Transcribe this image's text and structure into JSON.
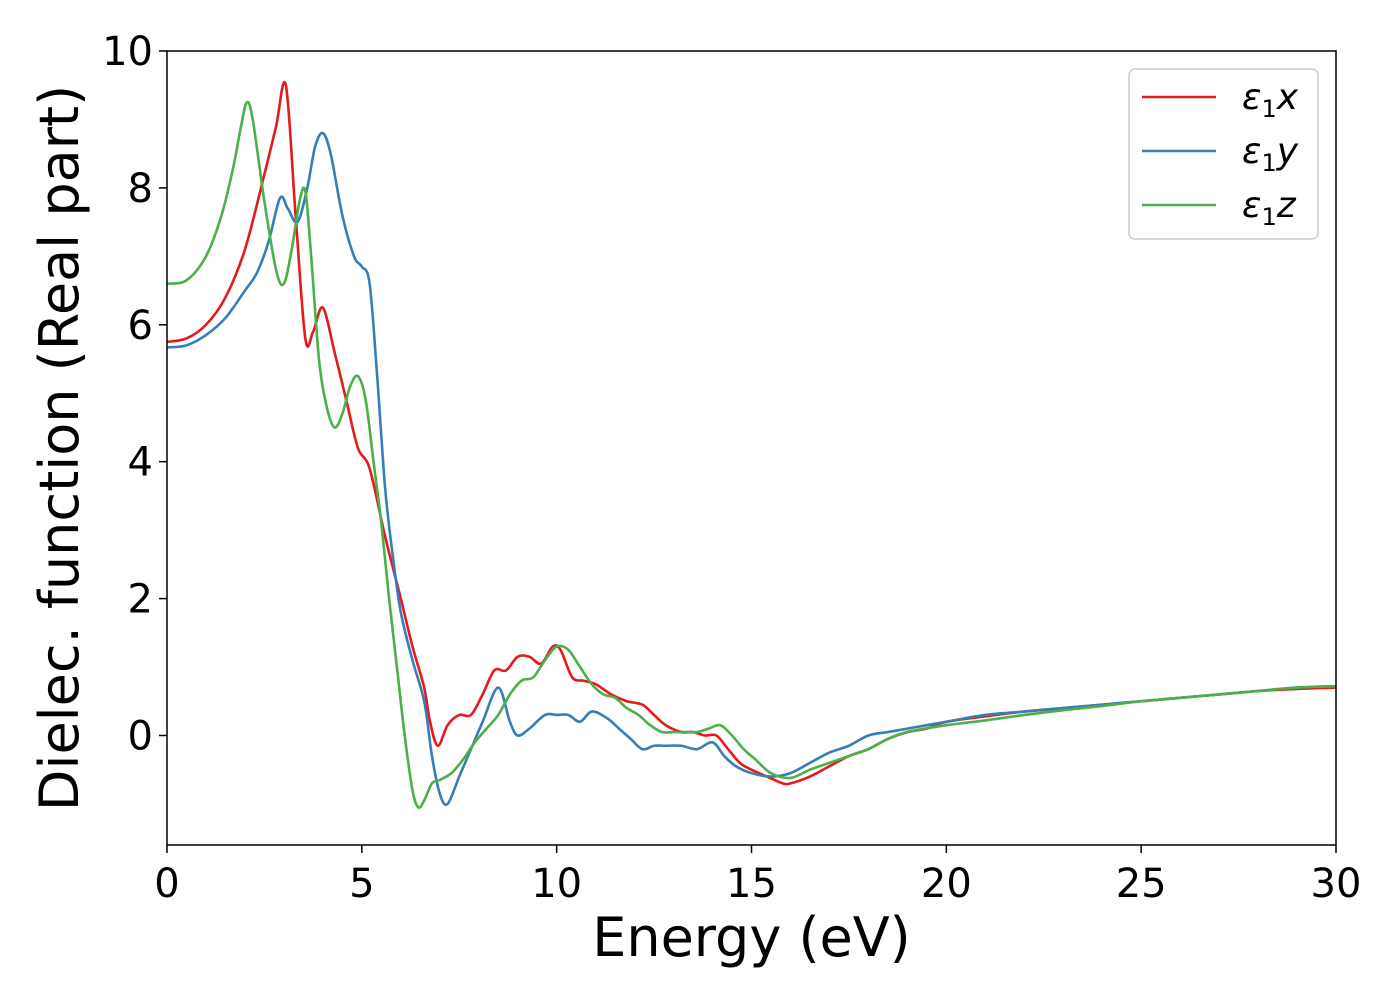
{
  "chart_data": {
    "type": "line",
    "xlabel": "Energy (eV)",
    "ylabel": "Dielec. function (Real part)",
    "xlim": [
      0,
      30
    ],
    "ylim": [
      -1.6,
      10
    ],
    "xticks": [
      0,
      5,
      10,
      15,
      20,
      25,
      30
    ],
    "yticks": [
      0,
      2,
      4,
      6,
      8,
      10
    ],
    "xtick_labels": [
      "0",
      "5",
      "10",
      "15",
      "20",
      "25",
      "30"
    ],
    "ytick_labels": [
      "0",
      "2",
      "4",
      "6",
      "8",
      "10"
    ],
    "grid": false,
    "legend_position": "top-right",
    "series": [
      {
        "name": "ε1x",
        "legend_symbol": "ε",
        "legend_sub": "1",
        "legend_var": "x",
        "color": "#e41a1c",
        "x": [
          0,
          0.5,
          1.0,
          1.5,
          2.0,
          2.5,
          2.8,
          3.05,
          3.3,
          3.55,
          3.75,
          4.0,
          4.3,
          4.6,
          4.9,
          5.2,
          5.6,
          6.0,
          6.3,
          6.6,
          6.75,
          6.95,
          7.2,
          7.5,
          7.8,
          8.1,
          8.4,
          8.7,
          9.0,
          9.3,
          9.6,
          9.9,
          10.1,
          10.4,
          10.7,
          11.0,
          11.4,
          11.8,
          12.2,
          12.5,
          12.8,
          13.2,
          13.5,
          13.8,
          14.1,
          14.4,
          14.7,
          15.0,
          15.4,
          15.8,
          16.0,
          16.5,
          17.0,
          17.5,
          18.0,
          18.5,
          19.0,
          19.5,
          20.0,
          21.0,
          22.0,
          23.0,
          24.0,
          25.0,
          26.0,
          27.0,
          28.0,
          29.0,
          30.0
        ],
        "y": [
          5.75,
          5.8,
          6.0,
          6.4,
          7.1,
          8.2,
          8.9,
          9.5,
          7.6,
          5.8,
          5.9,
          6.25,
          5.6,
          4.9,
          4.2,
          3.9,
          2.9,
          2.0,
          1.3,
          0.7,
          0.2,
          -0.15,
          0.15,
          0.3,
          0.3,
          0.6,
          0.95,
          0.95,
          1.15,
          1.15,
          1.05,
          1.3,
          1.25,
          0.85,
          0.8,
          0.75,
          0.6,
          0.5,
          0.45,
          0.3,
          0.15,
          0.05,
          0.05,
          0.0,
          0.0,
          -0.2,
          -0.4,
          -0.5,
          -0.6,
          -0.7,
          -0.7,
          -0.6,
          -0.45,
          -0.3,
          -0.2,
          -0.05,
          0.05,
          0.1,
          0.2,
          0.28,
          0.35,
          0.4,
          0.45,
          0.5,
          0.55,
          0.6,
          0.65,
          0.68,
          0.7
        ]
      },
      {
        "name": "ε1y",
        "legend_symbol": "ε",
        "legend_sub": "1",
        "legend_var": "y",
        "color": "#377eb8",
        "x": [
          0,
          0.5,
          1.0,
          1.5,
          2.0,
          2.3,
          2.6,
          2.9,
          3.1,
          3.35,
          3.6,
          3.8,
          4.0,
          4.2,
          4.5,
          4.8,
          5.0,
          5.2,
          5.4,
          5.6,
          5.8,
          6.0,
          6.3,
          6.6,
          6.8,
          7.0,
          7.2,
          7.5,
          7.8,
          8.1,
          8.5,
          8.8,
          9.0,
          9.3,
          9.7,
          10.0,
          10.3,
          10.6,
          10.9,
          11.3,
          11.6,
          11.9,
          12.2,
          12.5,
          12.8,
          13.2,
          13.6,
          14.0,
          14.3,
          14.6,
          15.0,
          15.5,
          16.0,
          16.5,
          17.0,
          17.5,
          18.0,
          18.5,
          19.0,
          20.0,
          21.0,
          22.0,
          23.0,
          24.0,
          25.0,
          26.0,
          27.0,
          28.0,
          29.0,
          30.0
        ],
        "y": [
          5.67,
          5.7,
          5.85,
          6.1,
          6.5,
          6.75,
          7.2,
          7.85,
          7.7,
          7.5,
          8.0,
          8.6,
          8.8,
          8.5,
          7.6,
          7.0,
          6.85,
          6.6,
          5.2,
          3.6,
          2.6,
          1.8,
          1.1,
          0.5,
          -0.3,
          -0.85,
          -1.0,
          -0.6,
          -0.2,
          0.2,
          0.7,
          0.2,
          0.0,
          0.1,
          0.3,
          0.3,
          0.3,
          0.2,
          0.35,
          0.25,
          0.1,
          -0.05,
          -0.2,
          -0.15,
          -0.15,
          -0.15,
          -0.2,
          -0.1,
          -0.3,
          -0.45,
          -0.55,
          -0.6,
          -0.55,
          -0.4,
          -0.25,
          -0.15,
          0.0,
          0.05,
          0.1,
          0.2,
          0.3,
          0.35,
          0.4,
          0.45,
          0.5,
          0.55,
          0.6,
          0.65,
          0.7,
          0.72
        ]
      },
      {
        "name": "ε1z",
        "legend_symbol": "ε",
        "legend_sub": "1",
        "legend_var": "z",
        "color": "#4daf4a",
        "x": [
          0,
          0.5,
          1.0,
          1.4,
          1.7,
          1.9,
          2.05,
          2.2,
          2.5,
          2.8,
          3.0,
          3.2,
          3.4,
          3.55,
          3.7,
          3.9,
          4.1,
          4.3,
          4.5,
          4.7,
          4.9,
          5.1,
          5.3,
          5.5,
          5.7,
          5.9,
          6.1,
          6.3,
          6.45,
          6.6,
          6.8,
          7.0,
          7.3,
          7.6,
          7.9,
          8.2,
          8.5,
          8.8,
          9.1,
          9.4,
          9.7,
          10.0,
          10.3,
          10.6,
          10.9,
          11.2,
          11.5,
          11.8,
          12.1,
          12.4,
          12.7,
          13.0,
          13.3,
          13.6,
          13.9,
          14.2,
          14.5,
          14.8,
          15.1,
          15.5,
          16.0,
          16.5,
          17.0,
          17.5,
          18.0,
          18.5,
          19.0,
          20.0,
          21.0,
          22.0,
          23.0,
          24.0,
          25.0,
          26.0,
          27.0,
          28.0,
          29.0,
          30.0
        ],
        "y": [
          6.6,
          6.65,
          7.0,
          7.6,
          8.3,
          8.9,
          9.25,
          9.0,
          7.8,
          6.8,
          6.6,
          7.1,
          7.8,
          7.95,
          7.0,
          5.5,
          4.8,
          4.5,
          4.7,
          5.1,
          5.25,
          4.9,
          4.0,
          3.1,
          2.0,
          1.0,
          0.0,
          -0.8,
          -1.05,
          -0.95,
          -0.7,
          -0.65,
          -0.55,
          -0.35,
          -0.1,
          0.1,
          0.3,
          0.6,
          0.8,
          0.85,
          1.1,
          1.3,
          1.25,
          1.0,
          0.75,
          0.6,
          0.55,
          0.4,
          0.3,
          0.15,
          0.05,
          0.05,
          0.05,
          0.05,
          0.1,
          0.15,
          0.0,
          -0.2,
          -0.35,
          -0.55,
          -0.62,
          -0.5,
          -0.4,
          -0.3,
          -0.2,
          -0.05,
          0.05,
          0.15,
          0.22,
          0.3,
          0.37,
          0.43,
          0.5,
          0.55,
          0.6,
          0.65,
          0.7,
          0.72
        ]
      }
    ]
  }
}
